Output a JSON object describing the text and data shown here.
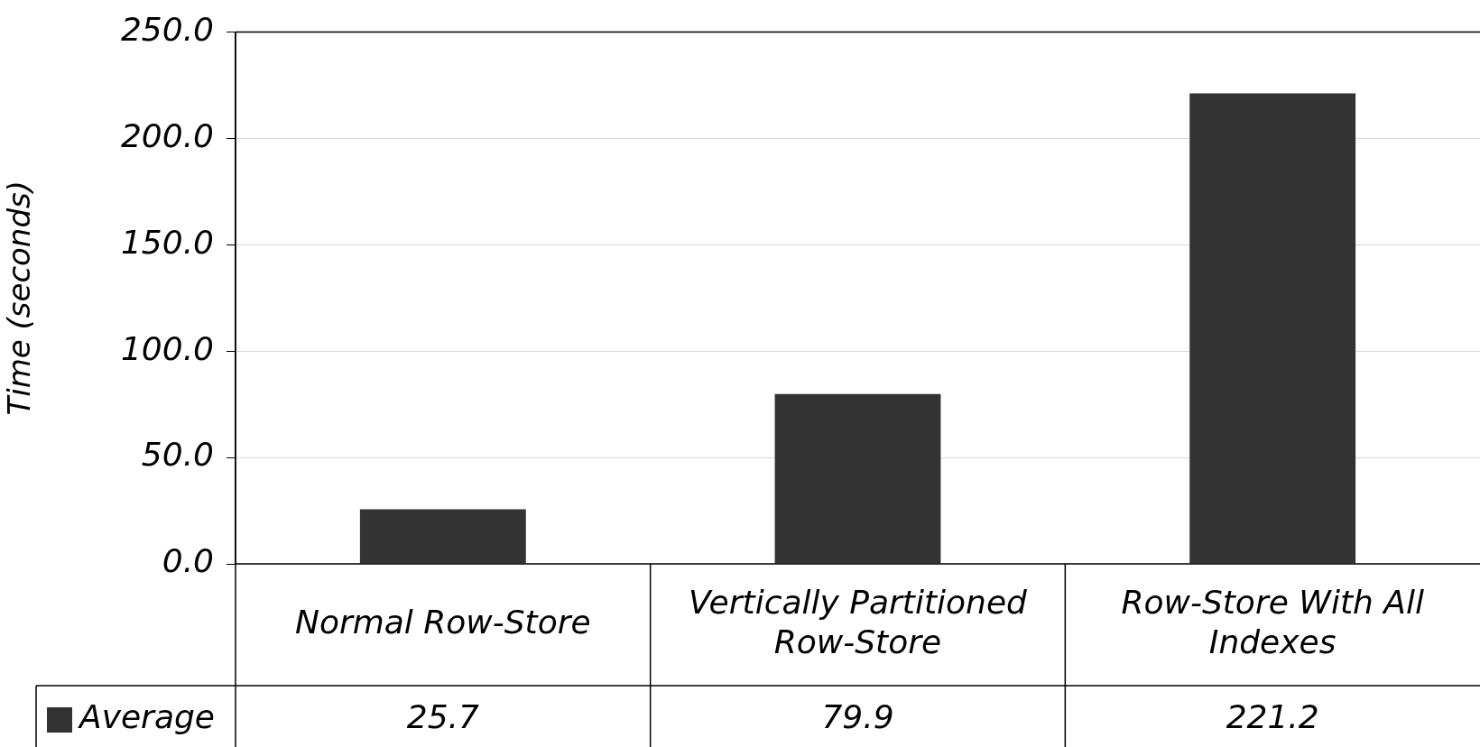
{
  "chart_data": {
    "type": "bar",
    "ylabel": "Time (seconds)",
    "categories": [
      "Normal Row-Store",
      "Vertically Partitioned Row-Store",
      "Row-Store With All Indexes"
    ],
    "series": [
      {
        "name": "Average",
        "color": "#333333",
        "values": [
          25.7,
          79.9,
          221.2
        ]
      }
    ],
    "ylim": [
      0,
      250
    ],
    "yticks": [
      {
        "value": 0,
        "label": "0.0"
      },
      {
        "value": 50,
        "label": "50.0"
      },
      {
        "value": 100,
        "label": "100.0"
      },
      {
        "value": 150,
        "label": "150.0"
      },
      {
        "value": 200,
        "label": "200.0"
      },
      {
        "value": 250,
        "label": "250.0"
      }
    ],
    "grid": "y",
    "legend": "bottom",
    "data_labels": true
  }
}
